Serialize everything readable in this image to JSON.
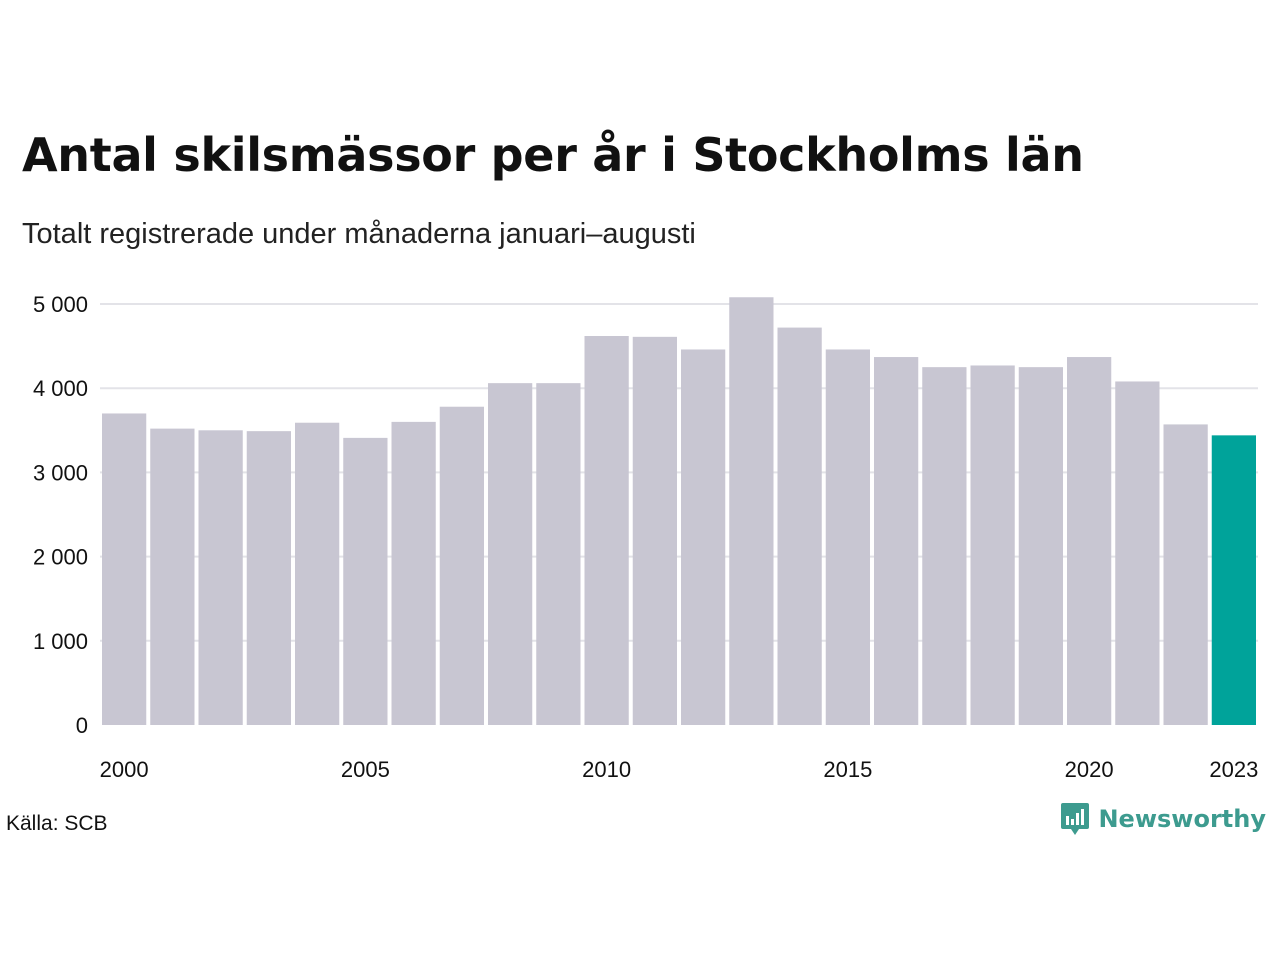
{
  "header": {
    "title": "Antal skilsmässor per år i Stockholms län",
    "subtitle": "Totalt registrerade under månaderna januari–augusti"
  },
  "footer": {
    "source": "Källa: SCB",
    "brand": "Newsworthy"
  },
  "colors": {
    "bar": "#c8c6d2",
    "highlight": "#00a39a",
    "grid": "#e3e3e8",
    "brand": "#3d9b8f"
  },
  "chart_data": {
    "type": "bar",
    "categories": [
      "2000",
      "2001",
      "2002",
      "2003",
      "2004",
      "2005",
      "2006",
      "2007",
      "2008",
      "2009",
      "2010",
      "2011",
      "2012",
      "2013",
      "2014",
      "2015",
      "2016",
      "2017",
      "2018",
      "2019",
      "2020",
      "2021",
      "2022",
      "2023"
    ],
    "values": [
      3700,
      3520,
      3500,
      3490,
      3590,
      3410,
      3600,
      3780,
      4060,
      4060,
      4620,
      4610,
      4460,
      5080,
      4720,
      4460,
      4370,
      4250,
      4270,
      4250,
      4370,
      4080,
      3570,
      3440
    ],
    "highlight_category": "2023",
    "x_tick_labels": [
      "2000",
      "2005",
      "2010",
      "2015",
      "2020",
      "2023"
    ],
    "y_ticks": [
      0,
      1000,
      2000,
      3000,
      4000,
      5000
    ],
    "y_tick_labels": [
      "0",
      "1 000",
      "2 000",
      "3 000",
      "4 000",
      "5 000"
    ],
    "ylim": [
      0,
      5000
    ],
    "grid": true,
    "legend": "none"
  }
}
